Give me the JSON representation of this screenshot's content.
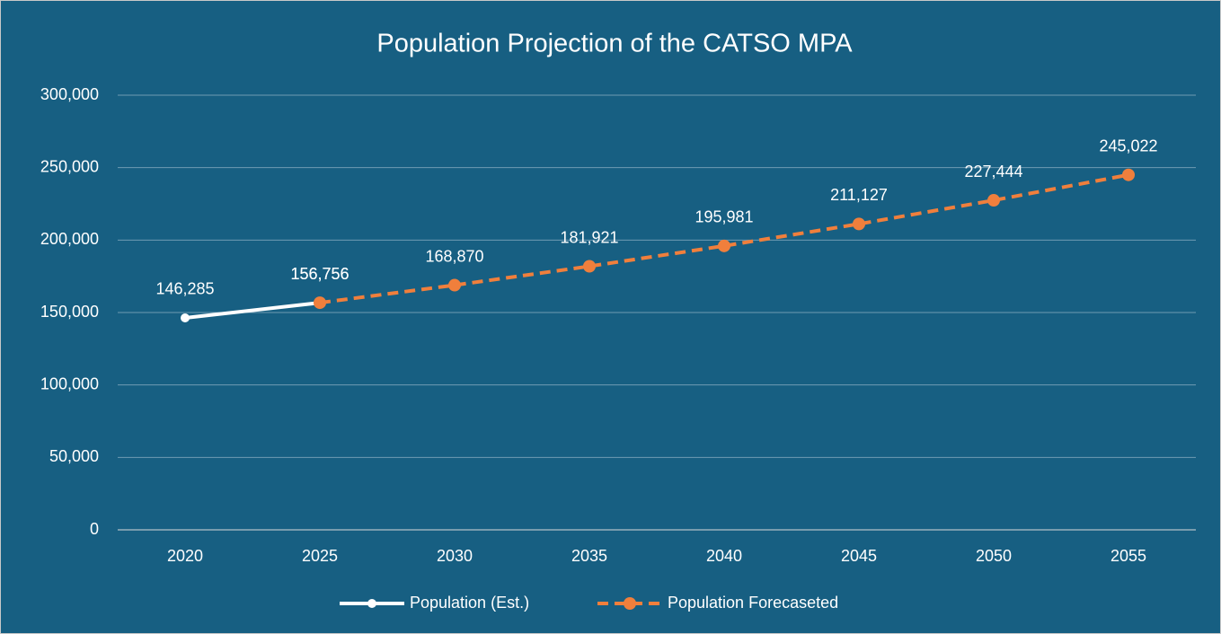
{
  "chart_data": {
    "type": "line",
    "title": "Population Projection of the CATSO MPA",
    "categories": [
      "2020",
      "2025",
      "2030",
      "2035",
      "2040",
      "2045",
      "2050",
      "2055"
    ],
    "series": [
      {
        "name": "Population (Est.)",
        "color": "#ffffff",
        "dash": false,
        "values": [
          146285,
          156756,
          null,
          null,
          null,
          null,
          null,
          null
        ],
        "value_labels": [
          "146,285",
          "156,756",
          null,
          null,
          null,
          null,
          null,
          null
        ]
      },
      {
        "name": "Population Forecaseted",
        "color": "#f07f3c",
        "dash": true,
        "values": [
          null,
          156756,
          168870,
          181921,
          195981,
          211127,
          227444,
          245022
        ],
        "value_labels": [
          null,
          "156,756",
          "168,870",
          "181,921",
          "195,981",
          "211,127",
          "227,444",
          "245,022"
        ]
      }
    ],
    "ylim": [
      0,
      300000
    ],
    "yticks": [
      0,
      {
        "value": 50000,
        "label": "50,000"
      },
      {
        "value": 100000,
        "label": "100,000"
      },
      {
        "value": 150000,
        "label": "150,000"
      },
      {
        "value": 200000,
        "label": "200,000"
      },
      {
        "value": 250000,
        "label": "250,000"
      },
      {
        "value": 300000,
        "label": "300,000"
      }
    ],
    "grid": true,
    "legend": "bottom"
  }
}
